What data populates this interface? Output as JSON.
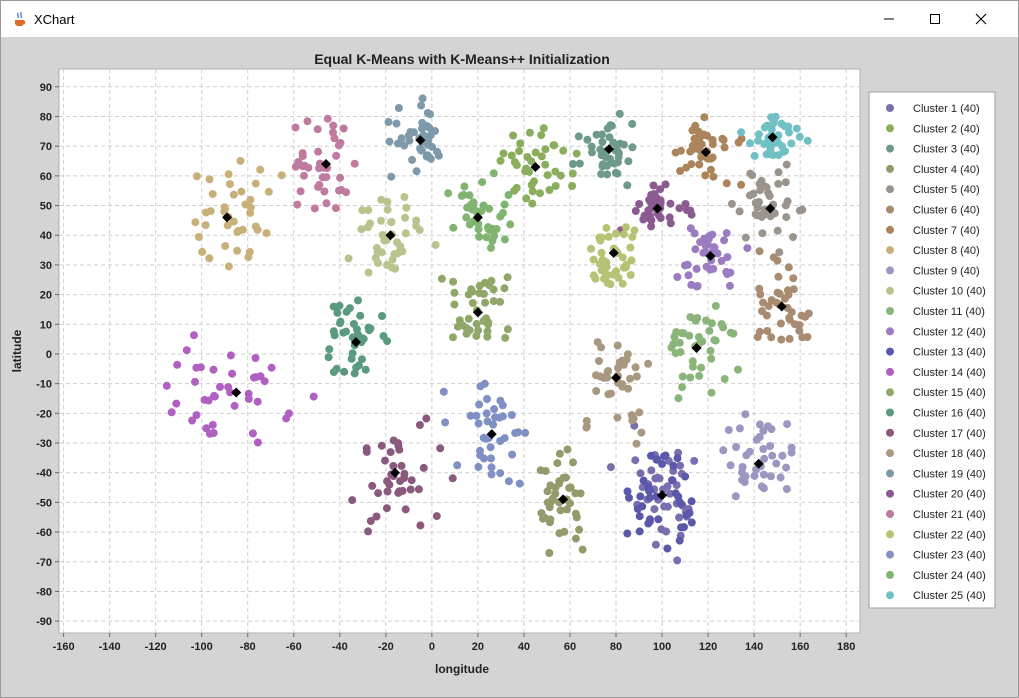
{
  "window": {
    "title": "XChart",
    "icons": {
      "app": "java-coffee-icon",
      "minimize": "minimize-icon",
      "maximize": "maximize-icon",
      "close": "close-icon"
    }
  },
  "chart_data": {
    "type": "scatter",
    "title": "Equal K-Means with K-Means++ Initialization",
    "xlabel": "longitude",
    "ylabel": "latitude",
    "xlim": [
      -162,
      186
    ],
    "ylim": [
      -94,
      96
    ],
    "xticks": [
      -160,
      -140,
      -120,
      -100,
      -80,
      -60,
      -40,
      -20,
      0,
      20,
      40,
      60,
      80,
      100,
      120,
      140,
      160,
      180
    ],
    "yticks": [
      90,
      80,
      70,
      60,
      50,
      40,
      30,
      20,
      10,
      0,
      -10,
      -20,
      -30,
      -40,
      -50,
      -60,
      -70,
      -80,
      -90
    ],
    "grid": true,
    "legend_position": "right",
    "marker_color": "#000000",
    "series": [
      {
        "name": "Cluster 1 (40)",
        "color": "#7a6eb0",
        "center": [
          100,
          -47.6
        ],
        "spread": [
          14,
          17
        ],
        "count": 40
      },
      {
        "name": "Cluster 2 (40)",
        "color": "#8aae5c",
        "center": [
          45,
          63
        ],
        "spread": [
          13,
          10
        ],
        "count": 40
      },
      {
        "name": "Cluster 3 (40)",
        "color": "#6d9a8a",
        "center": [
          77,
          69
        ],
        "spread": [
          10,
          8
        ],
        "count": 40
      },
      {
        "name": "Cluster 4 (40)",
        "color": "#969a6a",
        "center": [
          57,
          -49
        ],
        "spread": [
          9,
          13
        ],
        "count": 40
      },
      {
        "name": "Cluster 5 (40)",
        "color": "#9a948c",
        "center": [
          147,
          49
        ],
        "spread": [
          11,
          10
        ],
        "count": 40
      },
      {
        "name": "Cluster 6 (40)",
        "color": "#a88b70",
        "center": [
          152,
          16
        ],
        "spread": [
          11,
          12
        ],
        "count": 40
      },
      {
        "name": "Cluster 7 (40)",
        "color": "#ab845c",
        "center": [
          119,
          68
        ],
        "spread": [
          12,
          9
        ],
        "count": 40
      },
      {
        "name": "Cluster 8 (40)",
        "color": "#c8b07a",
        "center": [
          -89,
          46
        ],
        "spread": [
          16,
          15
        ],
        "count": 40
      },
      {
        "name": "Cluster 9 (40)",
        "color": "#9a98c0",
        "center": [
          142,
          -37
        ],
        "spread": [
          13,
          14
        ],
        "count": 40
      },
      {
        "name": "Cluster 10 (40)",
        "color": "#b8c48e",
        "center": [
          -18,
          40
        ],
        "spread": [
          13,
          11
        ],
        "count": 40
      },
      {
        "name": "Cluster 11 (40)",
        "color": "#8ab47a",
        "center": [
          115,
          2
        ],
        "spread": [
          13,
          12
        ],
        "count": 40
      },
      {
        "name": "Cluster 12 (40)",
        "color": "#9b7cc0",
        "center": [
          121,
          33
        ],
        "spread": [
          12,
          10
        ],
        "count": 40
      },
      {
        "name": "Cluster 13 (40)",
        "color": "#5a58a8",
        "center": [
          100,
          -47.6
        ],
        "spread": [
          10,
          16
        ],
        "count": 40
      },
      {
        "name": "Cluster 14 (40)",
        "color": "#b060c0",
        "center": [
          -85,
          -13
        ],
        "spread": [
          25,
          18
        ],
        "count": 40
      },
      {
        "name": "Cluster 15 (40)",
        "color": "#8fa86a",
        "center": [
          20,
          14
        ],
        "spread": [
          13,
          12
        ],
        "count": 40
      },
      {
        "name": "Cluster 16 (40)",
        "color": "#5a9a7e",
        "center": [
          -33,
          4
        ],
        "spread": [
          12,
          12
        ],
        "count": 40
      },
      {
        "name": "Cluster 17 (40)",
        "color": "#8a5a7e",
        "center": [
          -16,
          -40
        ],
        "spread": [
          16,
          18
        ],
        "count": 40
      },
      {
        "name": "Cluster 18 (40)",
        "color": "#a89880",
        "center": [
          80,
          -8
        ],
        "spread": [
          12,
          14
        ],
        "count": 40
      },
      {
        "name": "Cluster 19 (40)",
        "color": "#7e9aaa",
        "center": [
          -5,
          72
        ],
        "spread": [
          12,
          8
        ],
        "count": 40
      },
      {
        "name": "Cluster 20 (40)",
        "color": "#8a5a90",
        "center": [
          98,
          49
        ],
        "spread": [
          12,
          8
        ],
        "count": 40
      },
      {
        "name": "Cluster 21 (40)",
        "color": "#c07aa0",
        "center": [
          -46,
          64
        ],
        "spread": [
          10,
          12
        ],
        "count": 40
      },
      {
        "name": "Cluster 22 (40)",
        "color": "#b4c474",
        "center": [
          79,
          34
        ],
        "spread": [
          9,
          10
        ],
        "count": 40
      },
      {
        "name": "Cluster 23 (40)",
        "color": "#8090c4",
        "center": [
          26,
          -27
        ],
        "spread": [
          14,
          14
        ],
        "count": 40
      },
      {
        "name": "Cluster 24 (40)",
        "color": "#80b470",
        "center": [
          20,
          46
        ],
        "spread": [
          12,
          10
        ],
        "count": 40
      },
      {
        "name": "Cluster 25 (40)",
        "color": "#70c0c4",
        "center": [
          148,
          73
        ],
        "spread": [
          9,
          6
        ],
        "count": 40
      }
    ]
  }
}
